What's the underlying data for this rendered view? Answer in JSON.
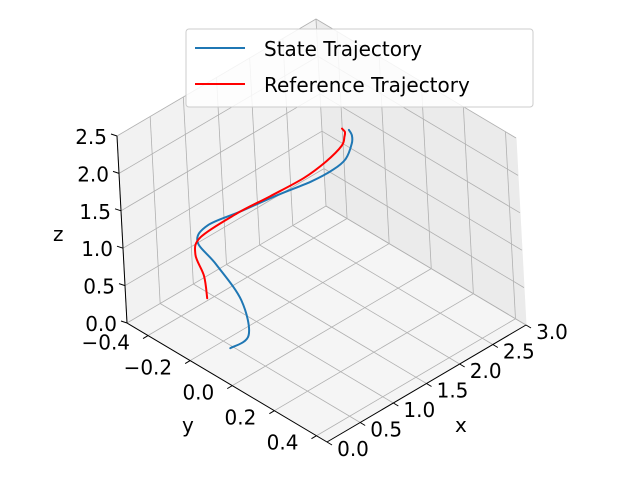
{
  "chart_data": {
    "type": "line",
    "title": "",
    "xlabel": "x",
    "ylabel": "y",
    "zlabel": "z",
    "xlim": [
      0.0,
      3.0
    ],
    "ylim": [
      -0.5,
      0.45
    ],
    "zlim": [
      0.0,
      2.5
    ],
    "x_ticks": [
      "0.0",
      "0.5",
      "1.0",
      "1.5",
      "2.0",
      "2.5",
      "3.0"
    ],
    "y_ticks": [
      "−0.4",
      "−0.2",
      "0.0",
      "0.2",
      "0.4"
    ],
    "z_ticks": [
      "0.0",
      "0.5",
      "1.0",
      "1.5",
      "2.0",
      "2.5"
    ],
    "grid": true,
    "legend_position": "top-right",
    "series": [
      {
        "name": "State Trajectory",
        "color": "#1f77b4",
        "points": [
          [
            0.0,
            0.0,
            0.5
          ],
          [
            0.1,
            0.06,
            0.72
          ],
          [
            0.14,
            0.02,
            1.1
          ],
          [
            0.13,
            -0.09,
            1.4
          ],
          [
            0.14,
            -0.18,
            1.55
          ],
          [
            0.36,
            -0.2,
            1.62
          ],
          [
            0.85,
            -0.2,
            1.55
          ],
          [
            1.4,
            -0.2,
            1.48
          ],
          [
            1.9,
            -0.2,
            1.4
          ],
          [
            2.3,
            -0.22,
            1.32
          ],
          [
            2.55,
            -0.24,
            1.3
          ],
          [
            2.65,
            -0.24,
            1.45
          ],
          [
            2.6,
            -0.22,
            1.62
          ],
          [
            2.5,
            -0.2,
            1.78
          ]
        ]
      },
      {
        "name": "Reference Trajectory",
        "color": "#ff0000",
        "points": [
          [
            0.0,
            -0.1,
            1.0
          ],
          [
            0.03,
            -0.12,
            1.25
          ],
          [
            0.1,
            -0.18,
            1.4
          ],
          [
            0.25,
            -0.2,
            1.52
          ],
          [
            0.8,
            -0.2,
            1.55
          ],
          [
            1.3,
            -0.2,
            1.52
          ],
          [
            1.8,
            -0.2,
            1.5
          ],
          [
            2.2,
            -0.22,
            1.48
          ],
          [
            2.5,
            -0.24,
            1.5
          ],
          [
            2.55,
            -0.24,
            1.6
          ],
          [
            2.5,
            -0.22,
            1.72
          ],
          [
            2.4,
            -0.2,
            1.85
          ]
        ]
      }
    ]
  }
}
